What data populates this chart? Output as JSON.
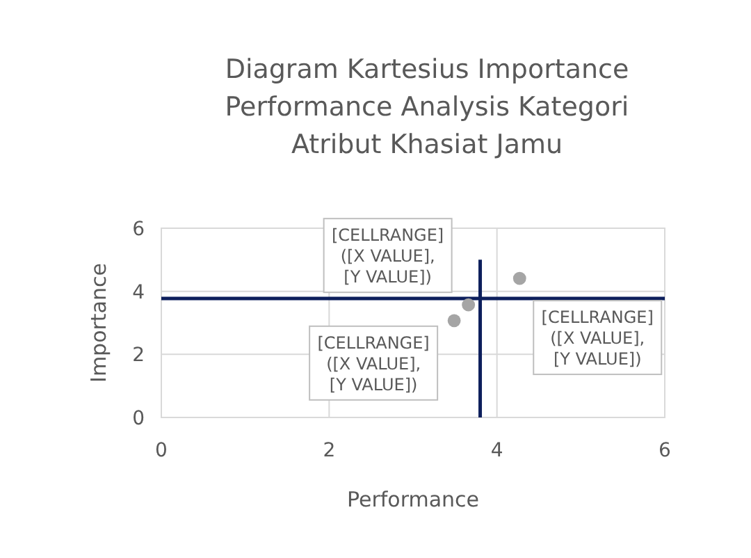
{
  "chart_data": {
    "type": "scatter",
    "title": "Diagram Kartesius Importance Performance Analysis Kategori Atribut Khasiat Jamu",
    "xlabel": "Performance",
    "ylabel": "Importance",
    "xlim": [
      0,
      6
    ],
    "ylim": [
      0,
      6
    ],
    "xticks": [
      0,
      2,
      4,
      6
    ],
    "yticks": [
      0,
      2,
      4,
      6
    ],
    "grid": true,
    "series": [
      {
        "type": "line",
        "color": "#0d1f5c",
        "x": [
          0,
          6
        ],
        "values": [
          3.77,
          3.77
        ],
        "marker": "none"
      },
      {
        "type": "line",
        "color": "#0d1f5c",
        "x": [
          3.8,
          3.8
        ],
        "values": [
          0,
          5
        ],
        "marker": "none"
      },
      {
        "color": "#a5a5a5",
        "x": [
          3.49,
          3.66,
          4.27
        ],
        "values": [
          3.07,
          3.57,
          4.41
        ],
        "marker": "circle",
        "value_labels": [
          "[CELLRANGE] ([X VALUE], [Y VALUE])",
          "[CELLRANGE] ([X VALUE], [Y VALUE])",
          "[CELLRANGE] ([X VALUE], [Y VALUE])"
        ]
      }
    ]
  }
}
